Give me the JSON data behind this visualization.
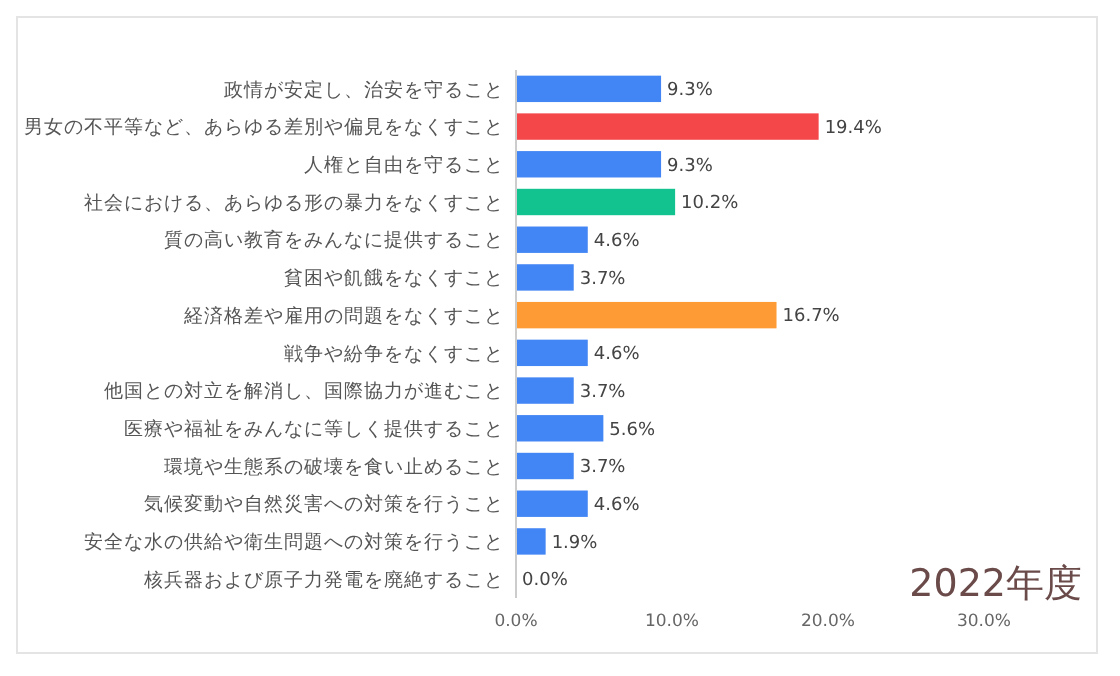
{
  "chart_data": {
    "type": "bar",
    "orientation": "horizontal",
    "title": "2022年度",
    "categories": [
      "政情が安定し、治安を守ること",
      "男女の不平等など、あらゆる差別や偏見をなくすこと",
      "人権と自由を守ること",
      "社会における、あらゆる形の暴力をなくすこと",
      "質の高い教育をみんなに提供すること",
      "貧困や飢餓をなくすこと",
      "経済格差や雇用の問題をなくすこと",
      "戦争や紛争をなくすこと",
      "他国との対立を解消し、国際協力が進むこと",
      "医療や福祉をみんなに等しく提供すること",
      "環境や生態系の破壊を食い止めること",
      "気候変動や自然災害への対策を行うこと",
      "安全な水の供給や衛生問題への対策を行うこと",
      "核兵器および原子力発電を廃絶すること"
    ],
    "values": [
      9.3,
      19.4,
      9.3,
      10.2,
      4.6,
      3.7,
      16.7,
      4.6,
      3.7,
      5.6,
      3.7,
      4.6,
      1.9,
      0.0
    ],
    "value_labels": [
      "9.3%",
      "19.4%",
      "9.3%",
      "10.2%",
      "4.6%",
      "3.7%",
      "16.7%",
      "4.6%",
      "3.7%",
      "5.6%",
      "3.7%",
      "4.6%",
      "1.9%",
      "0.0%"
    ],
    "colors": [
      "#4285f4",
      "#f4474a",
      "#4285f4",
      "#12c38f",
      "#4285f4",
      "#4285f4",
      "#ff9b34",
      "#4285f4",
      "#4285f4",
      "#4285f4",
      "#4285f4",
      "#4285f4",
      "#4285f4",
      "#4285f4"
    ],
    "xlim": [
      0,
      30
    ],
    "xticks": [
      {
        "value": 0,
        "label": "0.0%"
      },
      {
        "value": 10,
        "label": "10.0%"
      },
      {
        "value": 20,
        "label": "20.0%"
      },
      {
        "value": 30,
        "label": "30.0%"
      }
    ],
    "grid": false
  }
}
